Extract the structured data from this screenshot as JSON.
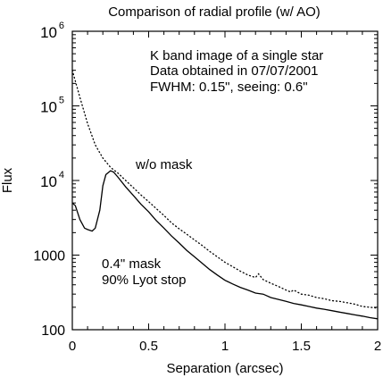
{
  "chart_data": {
    "type": "line",
    "title": "Comparison of radial profile (w/ AO)",
    "xlabel": "Separation (arcsec)",
    "ylabel": "Flux",
    "yscale": "log",
    "xlim": [
      0,
      2
    ],
    "ylim": [
      100,
      1000000
    ],
    "grid": false,
    "x_ticks": [
      0,
      0.5,
      1,
      1.5,
      2
    ],
    "x_tick_labels": [
      "0",
      "0.5",
      "1",
      "1.5",
      "2"
    ],
    "y_ticks": [
      {
        "value": 100,
        "label": "100",
        "base": "",
        "exp": ""
      },
      {
        "value": 1000,
        "label": "1000",
        "base": "",
        "exp": ""
      },
      {
        "value": 10000,
        "label": "",
        "base": "10",
        "exp": "4"
      },
      {
        "value": 100000,
        "label": "",
        "base": "10",
        "exp": "5"
      },
      {
        "value": 1000000,
        "label": "",
        "base": "10",
        "exp": "6"
      }
    ],
    "annotations": {
      "info_line1": "K band image of a single star",
      "info_line2": "Data obtained in 07/07/2001",
      "info_line3": "FWHM: 0.15\", seeing: 0.6\"",
      "without_mask": "w/o mask",
      "mask_line1": "0.4\" mask",
      "mask_line2": "90% Lyot stop"
    },
    "series": [
      {
        "key": "without_mask",
        "style": "dotted",
        "x": [
          0.0,
          0.05,
          0.1,
          0.15,
          0.2,
          0.25,
          0.3,
          0.35,
          0.4,
          0.45,
          0.5,
          0.55,
          0.6,
          0.65,
          0.7,
          0.75,
          0.8,
          0.85,
          0.9,
          0.95,
          1.0,
          1.05,
          1.1,
          1.15,
          1.2,
          1.22,
          1.25,
          1.3,
          1.35,
          1.4,
          1.43,
          1.45,
          1.5,
          1.55,
          1.6,
          1.65,
          1.7,
          1.75,
          1.8,
          1.85,
          1.9,
          1.95,
          2.0
        ],
        "values": [
          300000,
          130000,
          58000,
          30000,
          20000,
          15000,
          12500,
          10000,
          8000,
          6400,
          5200,
          4200,
          3400,
          2700,
          2250,
          1900,
          1600,
          1350,
          1120,
          950,
          800,
          700,
          610,
          540,
          500,
          560,
          470,
          420,
          380,
          340,
          320,
          340,
          300,
          290,
          270,
          260,
          245,
          240,
          230,
          220,
          205,
          200,
          195
        ]
      },
      {
        "key": "with_mask",
        "style": "solid",
        "x": [
          0.0,
          0.02,
          0.05,
          0.08,
          0.1,
          0.13,
          0.15,
          0.18,
          0.2,
          0.22,
          0.25,
          0.27,
          0.3,
          0.35,
          0.4,
          0.45,
          0.5,
          0.55,
          0.6,
          0.65,
          0.7,
          0.75,
          0.8,
          0.85,
          0.9,
          0.95,
          1.0,
          1.05,
          1.1,
          1.15,
          1.2,
          1.25,
          1.3,
          1.35,
          1.4,
          1.45,
          1.5,
          1.55,
          1.6,
          1.65,
          1.7,
          1.75,
          1.8,
          1.85,
          1.9,
          1.95,
          2.0
        ],
        "values": [
          5000,
          4600,
          3000,
          2300,
          2200,
          2100,
          2300,
          4000,
          8500,
          12000,
          13500,
          13000,
          11000,
          8200,
          6300,
          4800,
          3800,
          2900,
          2300,
          1800,
          1450,
          1150,
          950,
          780,
          640,
          540,
          460,
          410,
          370,
          340,
          310,
          300,
          270,
          255,
          240,
          225,
          215,
          205,
          195,
          188,
          180,
          172,
          165,
          158,
          152,
          145,
          140
        ]
      }
    ]
  }
}
